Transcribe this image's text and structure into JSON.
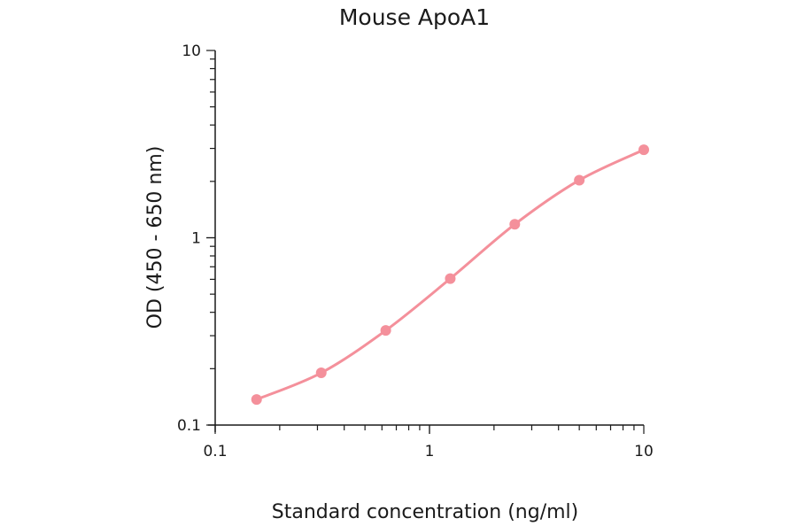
{
  "chart_data": {
    "type": "scatter",
    "title": "Mouse ApoA1",
    "xlabel": "Standard concentration (ng/ml)",
    "ylabel": "OD (450 - 650 nm)",
    "x_scale": "log",
    "y_scale": "log",
    "xlim": [
      0.1,
      10
    ],
    "ylim": [
      0.1,
      10
    ],
    "x_ticks": [
      "0.1",
      "1",
      "10"
    ],
    "y_ticks": [
      "0.1",
      "1",
      "10"
    ],
    "grid": false,
    "color": "#f4909b",
    "series": [
      {
        "x": [
          0.156,
          0.3125,
          0.625,
          1.25,
          2.5,
          5,
          10
        ],
        "y": [
          0.137,
          0.19,
          0.32,
          0.605,
          1.18,
          2.03,
          2.95
        ],
        "fit_curve": true
      }
    ]
  }
}
